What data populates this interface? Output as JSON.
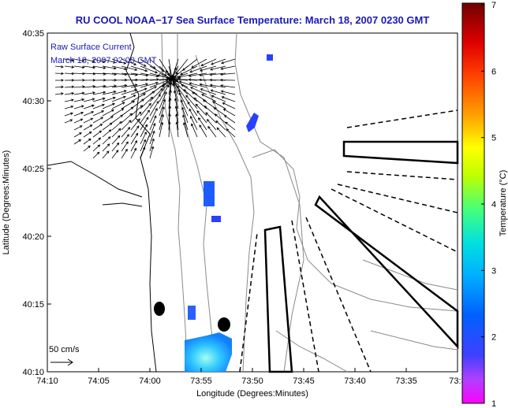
{
  "title": "RU COOL  NOAA−17  Sea Surface Temperature:  March 18, 2007 0230 GMT",
  "legend": {
    "line1": "Raw Surface Current",
    "line2": "March 18, 2007 02:00 GMT"
  },
  "scale_label": "50 cm/s",
  "chart_data": {
    "type": "map",
    "xlabel": "Longitude (Degrees:Minutes)",
    "ylabel": "Latitude (Degrees:Minutes)",
    "x_ticks": [
      "74:10",
      "74:05",
      "74:00",
      "73:55",
      "73:50",
      "73:45",
      "73:40",
      "73:35",
      "73:3"
    ],
    "y_ticks": [
      "40:35",
      "40:30",
      "40:25",
      "40:20",
      "40:15",
      "40:10"
    ],
    "colorbar": {
      "label": "Temperature (°C)",
      "ticks": [
        "7",
        "6",
        "5",
        "4",
        "3",
        "2",
        "1"
      ],
      "range": [
        1,
        7
      ],
      "colors": [
        "#ff00ff",
        "#4040ff",
        "#0050ff",
        "#00a0ff",
        "#00e0e0",
        "#40ff80",
        "#c0ff00",
        "#ffff00",
        "#ffa000",
        "#ff4000",
        "#e00000",
        "#700000"
      ]
    }
  }
}
